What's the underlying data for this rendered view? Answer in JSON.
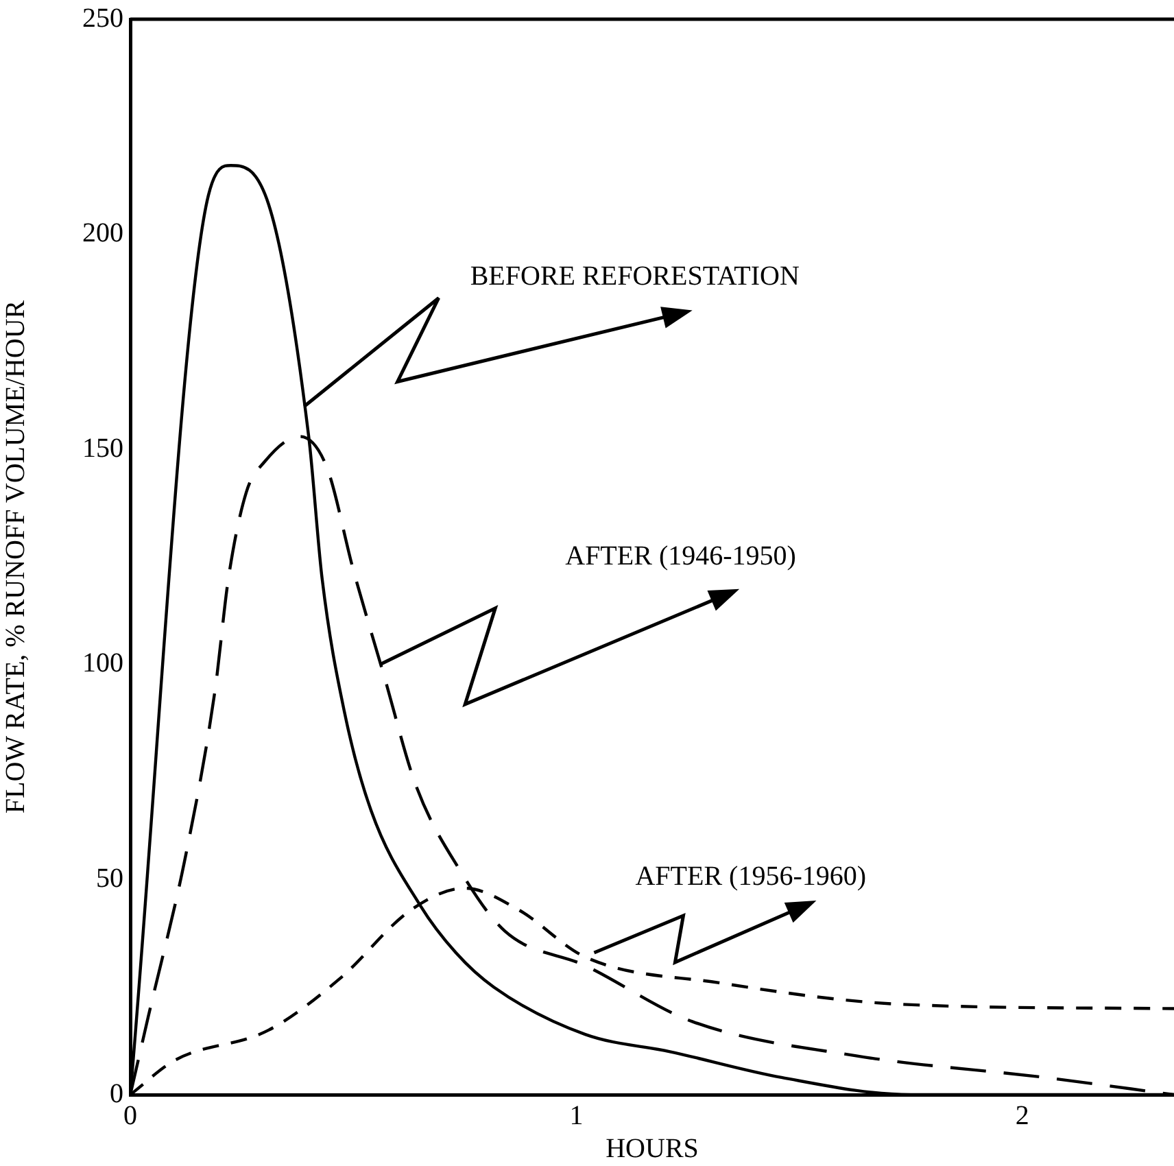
{
  "chart_data": {
    "type": "line",
    "xlabel": "HOURS",
    "ylabel": "FLOW RATE, % RUNOFF VOLUME/HOUR",
    "xlim": [
      0,
      2.34
    ],
    "xticks": [
      0,
      1,
      2
    ],
    "ylim": [
      0,
      250
    ],
    "yticks": [
      0,
      50,
      100,
      150,
      200,
      250
    ],
    "grid": false,
    "legend": false,
    "marker": "none",
    "series": [
      {
        "color": "#000000",
        "line_style": "solid",
        "x": [
          0,
          0.175,
          0.225,
          0.31,
          0.4,
          0.43,
          0.48,
          0.54,
          0.65,
          0.73,
          0.815,
          1.02,
          1.21,
          1.46,
          1.75,
          2.34
        ],
        "values": [
          0,
          209,
          216,
          207,
          153,
          120,
          89,
          66,
          44,
          33,
          25,
          14,
          10,
          4,
          0,
          0
        ]
      },
      {
        "color": "#000000",
        "line_style": "dashed",
        "x": [
          0,
          0.04,
          0.125,
          0.19,
          0.22,
          0.26,
          0.3,
          0.38,
          0.44,
          0.5,
          0.57,
          0.64,
          0.74,
          0.84,
          1.02,
          1.26,
          1.63,
          2.05,
          2.34
        ],
        "values": [
          0,
          18,
          56,
          94,
          120,
          140,
          147,
          153,
          146,
          122,
          97,
          72,
          52,
          38,
          30,
          17,
          9,
          4,
          0
        ]
      },
      {
        "color": "#000000",
        "line_style": "dashed",
        "x": [
          0,
          0.1,
          0.31,
          0.47,
          0.63,
          0.75,
          0.87,
          1.02,
          1.32,
          1.73,
          2.34
        ],
        "values": [
          0,
          8,
          15,
          27,
          43,
          48,
          43,
          32,
          26,
          21,
          20
        ]
      }
    ],
    "annotations": [
      {
        "text": "BEFORE REFORESTATION",
        "x": 0.39,
        "y": 160
      },
      {
        "text": "AFTER (1946-1950)",
        "x": 0.56,
        "y": 100
      },
      {
        "text": "AFTER (1956-1960)",
        "x": 1.04,
        "y": 33
      }
    ]
  }
}
